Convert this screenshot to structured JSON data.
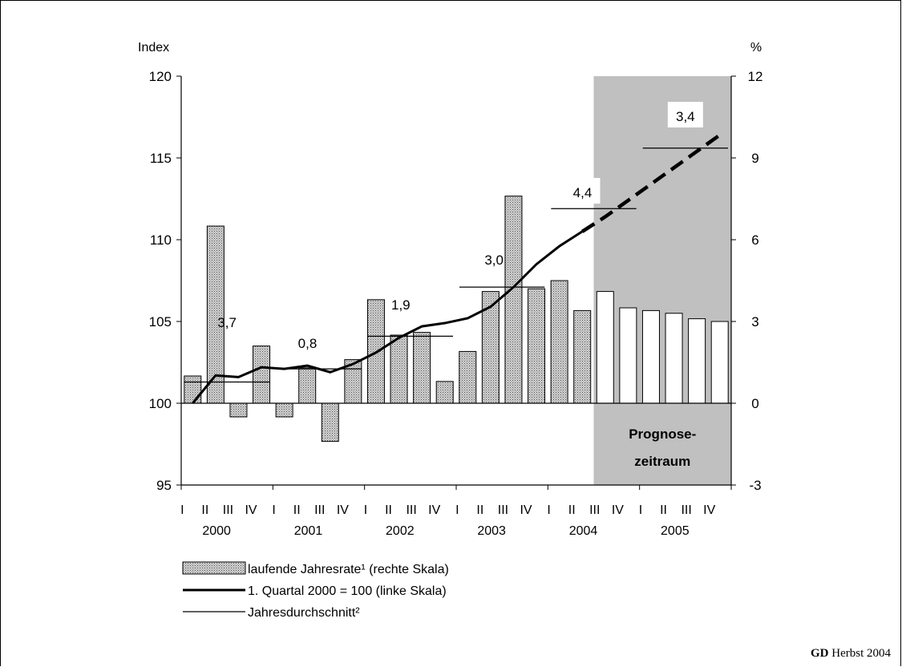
{
  "credit": {
    "brand": "GD",
    "text": "Herbst 2004"
  },
  "chart_data": {
    "type": "bar",
    "left_axis": {
      "label": "Index",
      "ylim": [
        95,
        120
      ],
      "ticks": [
        95,
        100,
        105,
        110,
        115,
        120
      ]
    },
    "right_axis": {
      "label": "%",
      "ylim": [
        -3,
        12
      ],
      "ticks": [
        -3,
        0,
        3,
        6,
        9,
        12
      ]
    },
    "quarter_labels": [
      "I",
      "II",
      "III",
      "IV",
      "I",
      "II",
      "III",
      "IV",
      "I",
      "II",
      "III",
      "IV",
      "I",
      "II",
      "III",
      "IV",
      "I",
      "II",
      "III",
      "IV",
      "I",
      "II",
      "III",
      "IV"
    ],
    "years": [
      "2000",
      "2001",
      "2002",
      "2003",
      "2004",
      "2005"
    ],
    "forecast_label_line1": "Prognose-",
    "forecast_label_line2": "zeitraum",
    "forecast_start_index": 18,
    "grid": false,
    "legend_position": "bottom-left",
    "series": [
      {
        "name": "laufende Jahresrate¹ (rechte Skala)",
        "type": "bar",
        "axis": "right",
        "values": [
          1.0,
          6.5,
          -0.5,
          2.1,
          -0.5,
          1.3,
          -1.4,
          1.6,
          3.8,
          2.5,
          2.6,
          0.8,
          1.9,
          4.1,
          7.6,
          4.2,
          4.5,
          3.4,
          4.1,
          3.5,
          3.4,
          3.3,
          3.1,
          3.0
        ],
        "forecast_from_index": 18,
        "color": "#a8a8a8",
        "forecast_color": "#ffffff"
      },
      {
        "name": "1. Quartal 2000 = 100 (linke Skala)",
        "type": "line",
        "axis": "left",
        "values": [
          100.0,
          101.7,
          101.6,
          102.2,
          102.1,
          102.3,
          101.9,
          102.4,
          103.1,
          104.0,
          104.7,
          104.9,
          105.2,
          105.9,
          107.1,
          108.5,
          109.6,
          110.5,
          111.4,
          112.4,
          113.4,
          114.4,
          115.4,
          116.4
        ],
        "forecast_from_index": 17,
        "color": "#000000"
      },
      {
        "name": "Jahresdurchschnitt²",
        "type": "step",
        "axis": "left",
        "values": [
          101.3,
          102.1,
          104.1,
          107.1,
          111.9,
          115.6
        ],
        "labels": [
          "3,7",
          "0,8",
          "1,9",
          "3,0",
          "4,4",
          "3,4"
        ],
        "color": "#000000"
      }
    ]
  }
}
